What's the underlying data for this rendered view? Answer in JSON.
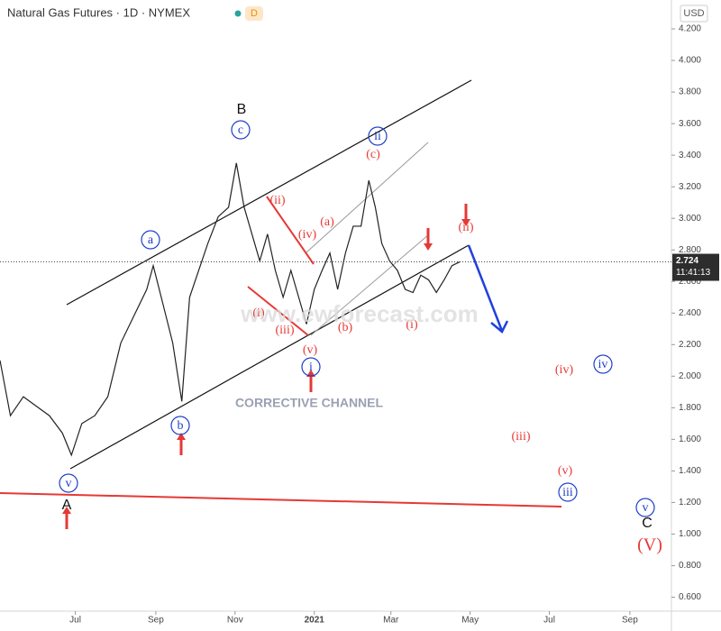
{
  "chart_data": {
    "type": "line",
    "title": "Natural Gas Futures · 1D · NYMEX",
    "badge": "D",
    "currency": "USD",
    "series": [
      {
        "name": "Natural Gas Futures",
        "color": "#222222",
        "x": [
          -58,
          -50,
          -40,
          -30,
          -20,
          -10,
          -3,
          5,
          15,
          25,
          35,
          45,
          55,
          60,
          68,
          75,
          82,
          88,
          95,
          102,
          110,
          118,
          124,
          130,
          136,
          142,
          148,
          154,
          160,
          166,
          172,
          178,
          184,
          190,
          196,
          202,
          208,
          214,
          220,
          226,
          231,
          236,
          242,
          248,
          254,
          260,
          266,
          272,
          278,
          284,
          290,
          296
        ],
        "values": [
          2.1,
          1.75,
          1.87,
          1.81,
          1.75,
          1.64,
          1.5,
          1.7,
          1.75,
          1.87,
          2.21,
          2.38,
          2.55,
          2.7,
          2.44,
          2.21,
          1.84,
          2.5,
          2.67,
          2.84,
          3.01,
          3.07,
          3.35,
          3.07,
          2.9,
          2.73,
          2.9,
          2.67,
          2.5,
          2.67,
          2.5,
          2.33,
          2.55,
          2.67,
          2.78,
          2.55,
          2.78,
          2.95,
          2.95,
          3.24,
          3.07,
          2.84,
          2.73,
          2.67,
          2.55,
          2.53,
          2.64,
          2.61,
          2.53,
          2.61,
          2.7,
          2.724
        ]
      }
    ],
    "last_price": 2.724,
    "countdown": "11:41:13",
    "xlim": [
      -58,
      459
    ],
    "xticks": [
      {
        "value": 0,
        "label": "Jul"
      },
      {
        "value": 62,
        "label": "Sep"
      },
      {
        "value": 123,
        "label": "Nov"
      },
      {
        "value": 184,
        "label": "2021"
      },
      {
        "value": 243,
        "label": "Mar"
      },
      {
        "value": 304,
        "label": "May"
      },
      {
        "value": 365,
        "label": "Jul"
      },
      {
        "value": 427,
        "label": "Sep"
      }
    ],
    "ylim": [
      0.5,
      4.383
    ],
    "yticks": [
      {
        "value": 0.6,
        "label": "0.600"
      },
      {
        "value": 0.8,
        "label": "0.800"
      },
      {
        "value": 1.0,
        "label": "1.000"
      },
      {
        "value": 1.2,
        "label": "1.200"
      },
      {
        "value": 1.4,
        "label": "1.400"
      },
      {
        "value": 1.6,
        "label": "1.600"
      },
      {
        "value": 1.8,
        "label": "1.800"
      },
      {
        "value": 2.0,
        "label": "2.000"
      },
      {
        "value": 2.2,
        "label": "2.200"
      },
      {
        "value": 2.4,
        "label": "2.400"
      },
      {
        "value": 2.6,
        "label": "2.600"
      },
      {
        "value": 2.8,
        "label": "2.800"
      },
      {
        "value": 3.0,
        "label": "3.000"
      },
      {
        "value": 3.2,
        "label": "3.200"
      },
      {
        "value": 3.4,
        "label": "3.400"
      },
      {
        "value": 3.6,
        "label": "3.600"
      },
      {
        "value": 3.8,
        "label": "3.800"
      },
      {
        "value": 4.0,
        "label": "4.000"
      },
      {
        "value": 4.2,
        "label": "4.200"
      }
    ],
    "annotations": [
      "B",
      "c",
      "a",
      "b",
      "v",
      "A",
      "(ii)",
      "(iv)",
      "(i)",
      "(iii)",
      "(v)",
      "i",
      "(a)",
      "(b)",
      "(c)",
      "ii",
      "(i)",
      "(ii)",
      "(iv)",
      "iv",
      "(iii)",
      "(v)",
      "iii",
      "v",
      "C",
      "(V)",
      "CORRECTIVE CHANNEL",
      "www.ewforecast.com"
    ]
  }
}
